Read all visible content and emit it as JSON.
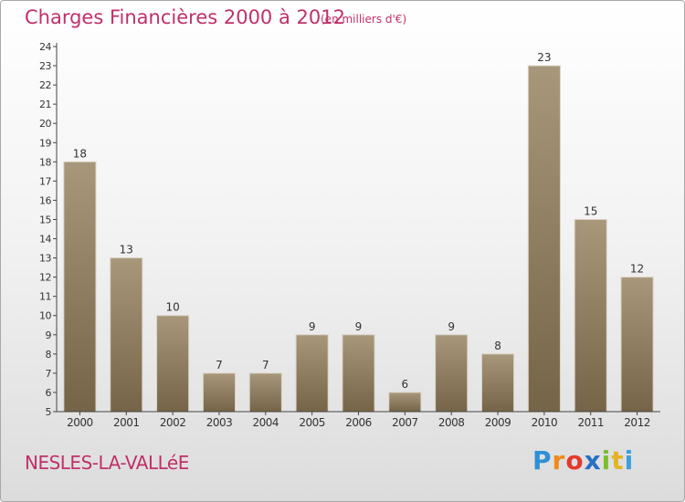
{
  "chart": {
    "title": "Charges Financières 2000 à 2012",
    "unit": "(en milliers d'€)"
  },
  "commune": "NESLES-LA-VALLéE",
  "logo": {
    "text": "Proxiti",
    "letters": [
      "P",
      "r",
      "o",
      "x",
      "i",
      "t",
      "i"
    ]
  },
  "colors": {
    "bar_light": "#a8977a",
    "bar_dark": "#756447",
    "title": "#c0306a",
    "axis": "#444444"
  },
  "chart_data": {
    "type": "bar",
    "title": "Charges Financières 2000 à 2012",
    "subtitle": "(en milliers d'€)",
    "categories": [
      "2000",
      "2001",
      "2002",
      "2003",
      "2004",
      "2005",
      "2006",
      "2007",
      "2008",
      "2009",
      "2010",
      "2011",
      "2012"
    ],
    "values": [
      18,
      13,
      10,
      7,
      7,
      9,
      9,
      6,
      9,
      8,
      23,
      15,
      12
    ],
    "ylim": [
      5,
      24
    ],
    "yticks": [
      5,
      6,
      7,
      8,
      9,
      10,
      11,
      12,
      13,
      14,
      15,
      16,
      17,
      18,
      19,
      20,
      21,
      22,
      23,
      24
    ],
    "grid": false,
    "data_labels": true
  }
}
